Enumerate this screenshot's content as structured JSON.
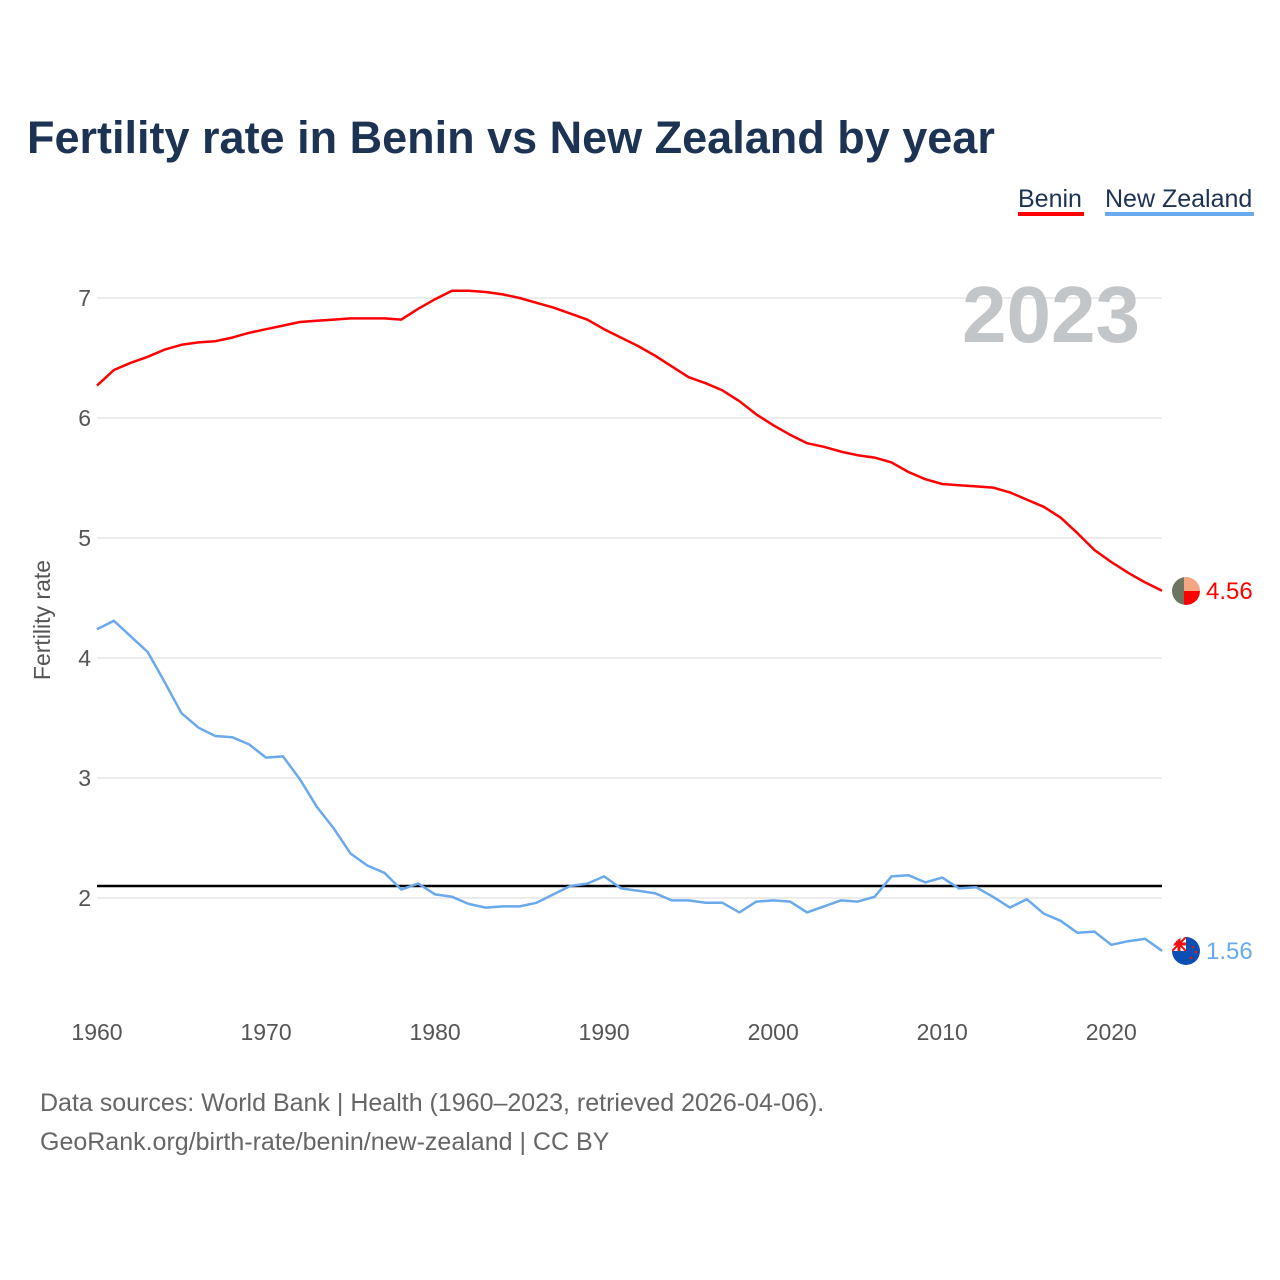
{
  "chart_data": {
    "type": "line",
    "title": "Fertility rate in Benin vs New Zealand by year",
    "xlabel": "",
    "ylabel": "Fertility rate",
    "xlim": [
      1960,
      2023
    ],
    "ylim": [
      1.1,
      7.4
    ],
    "x_ticks": [
      "1960",
      "1970",
      "1980",
      "1990",
      "2000",
      "2010",
      "2020"
    ],
    "y_ticks": [
      "2",
      "3",
      "4",
      "5",
      "6",
      "7"
    ],
    "grid": true,
    "legend_position": "top-right",
    "year_watermark": "2023",
    "reference_line": {
      "value": 2.1,
      "color": "#000000"
    },
    "x": [
      1960,
      1961,
      1962,
      1963,
      1964,
      1965,
      1966,
      1967,
      1968,
      1969,
      1970,
      1971,
      1972,
      1973,
      1974,
      1975,
      1976,
      1977,
      1978,
      1979,
      1980,
      1981,
      1982,
      1983,
      1984,
      1985,
      1986,
      1987,
      1988,
      1989,
      1990,
      1991,
      1992,
      1993,
      1994,
      1995,
      1996,
      1997,
      1998,
      1999,
      2000,
      2001,
      2002,
      2003,
      2004,
      2005,
      2006,
      2007,
      2008,
      2009,
      2010,
      2011,
      2012,
      2013,
      2014,
      2015,
      2016,
      2017,
      2018,
      2019,
      2020,
      2021,
      2022,
      2023
    ],
    "series": [
      {
        "name": "Benin",
        "color": "#ff0000",
        "end_label": "4.56",
        "values": [
          6.27,
          6.4,
          6.46,
          6.51,
          6.57,
          6.61,
          6.63,
          6.64,
          6.67,
          6.71,
          6.74,
          6.77,
          6.8,
          6.81,
          6.82,
          6.83,
          6.83,
          6.83,
          6.82,
          6.91,
          6.99,
          7.06,
          7.06,
          7.05,
          7.03,
          7.0,
          6.96,
          6.92,
          6.87,
          6.82,
          6.74,
          6.67,
          6.6,
          6.52,
          6.43,
          6.34,
          6.29,
          6.23,
          6.14,
          6.03,
          5.94,
          5.86,
          5.79,
          5.76,
          5.72,
          5.69,
          5.67,
          5.63,
          5.55,
          5.49,
          5.45,
          5.44,
          5.43,
          5.42,
          5.38,
          5.32,
          5.26,
          5.17,
          5.04,
          4.9,
          4.8,
          4.71,
          4.63,
          4.56
        ]
      },
      {
        "name": "New Zealand",
        "color": "#6aa9ec",
        "end_label": "1.56",
        "values": [
          4.24,
          4.31,
          4.18,
          4.05,
          3.8,
          3.54,
          3.42,
          3.35,
          3.34,
          3.28,
          3.17,
          3.18,
          2.99,
          2.76,
          2.58,
          2.37,
          2.27,
          2.21,
          2.07,
          2.12,
          2.03,
          2.01,
          1.95,
          1.92,
          1.93,
          1.93,
          1.96,
          2.03,
          2.1,
          2.12,
          2.18,
          2.08,
          2.06,
          2.04,
          1.98,
          1.98,
          1.96,
          1.96,
          1.88,
          1.97,
          1.98,
          1.97,
          1.88,
          1.93,
          1.98,
          1.97,
          2.01,
          2.18,
          2.19,
          2.13,
          2.17,
          2.08,
          2.09,
          2.01,
          1.92,
          1.99,
          1.87,
          1.81,
          1.71,
          1.72,
          1.61,
          1.64,
          1.66,
          1.56
        ]
      }
    ]
  },
  "footer": {
    "line1": "Data sources: World Bank | Health (1960–2023, retrieved 2026-04-06).",
    "line2": "GeoRank.org/birth-rate/benin/new-zealand | CC BY"
  }
}
